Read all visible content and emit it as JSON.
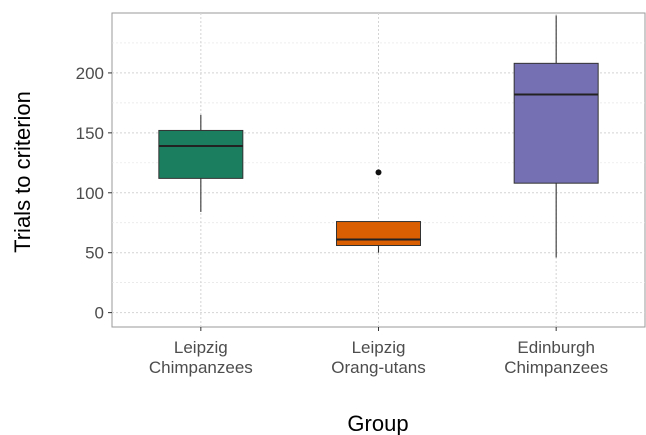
{
  "chart_data": {
    "type": "box",
    "xlabel": "Group",
    "ylabel": "Trials to criterion",
    "ylim": [
      -12,
      250
    ],
    "yticks": [
      0,
      50,
      100,
      150,
      200
    ],
    "grid": true,
    "legend": "none",
    "groups": [
      {
        "label": [
          "Leipzig",
          "Chimpanzees"
        ],
        "color": "#1b7f5f",
        "whisker_low": 84,
        "q1": 112,
        "median": 139,
        "q3": 152,
        "whisker_high": 165,
        "outliers": []
      },
      {
        "label": [
          "Leipzig",
          "Orang-utans"
        ],
        "color": "#d95f02",
        "whisker_low": 50,
        "q1": 56,
        "median": 61,
        "q3": 76,
        "whisker_high": 76,
        "outliers": [
          117
        ]
      },
      {
        "label": [
          "Edinburgh",
          "Chimpanzees"
        ],
        "color": "#7570b3",
        "whisker_low": 46,
        "q1": 108,
        "median": 182,
        "q3": 208,
        "whisker_high": 248,
        "outliers": []
      }
    ]
  }
}
